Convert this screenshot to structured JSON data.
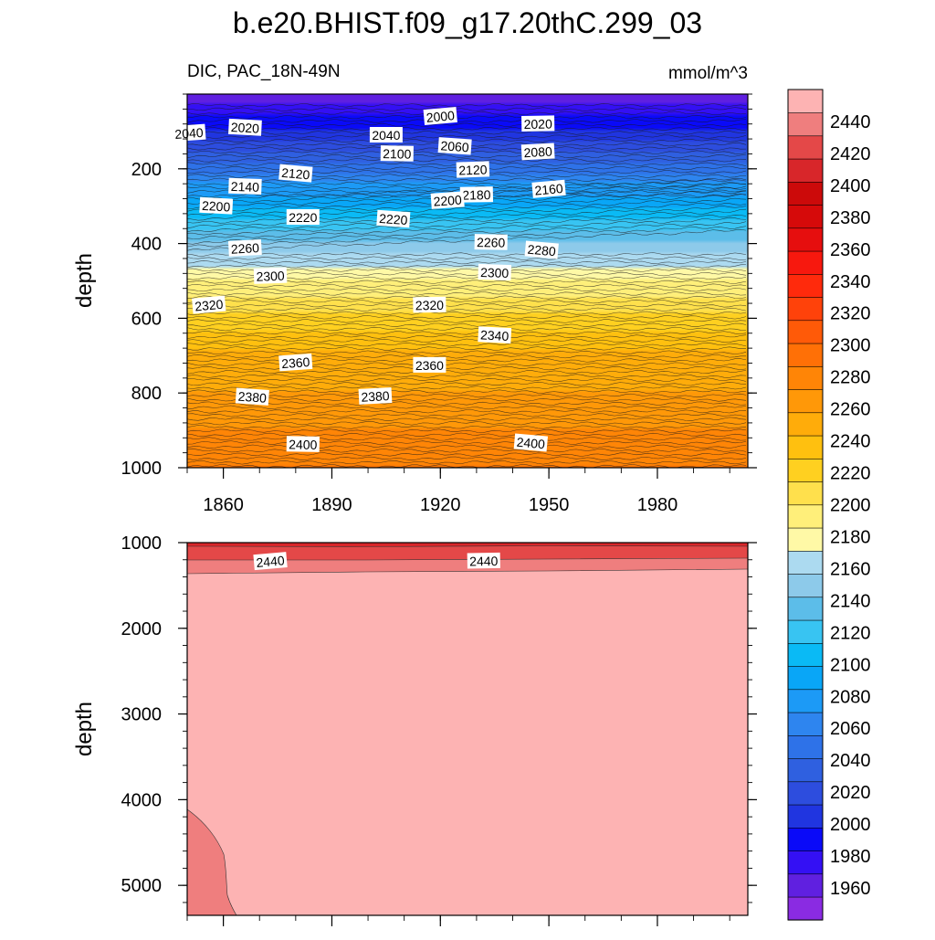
{
  "title": "b.e20.BHIST.f09_g17.20thC.299_03",
  "subtitle_left": "DIC, PAC_18N-49N",
  "subtitle_right": "mmol/m^3",
  "chart_data": [
    {
      "type": "heatmap",
      "panel": "upper",
      "ylabel": "depth",
      "y_reversed": true,
      "xlim": [
        1850,
        2005
      ],
      "ylim": [
        0,
        1000
      ],
      "x_ticks": [
        1860,
        1890,
        1920,
        1950,
        1980
      ],
      "x_tick_labels": [
        "1860",
        "1890",
        "1920",
        "1950",
        "1980"
      ],
      "y_ticks": [
        200,
        400,
        600,
        800,
        1000
      ],
      "y_tick_labels": [
        "200",
        "400",
        "600",
        "800",
        "1000"
      ],
      "contour_levels_depth_profile": [
        {
          "value": 2000,
          "depth": 60
        },
        {
          "value": 2040,
          "depth": 130
        },
        {
          "value": 2080,
          "depth": 185
        },
        {
          "value": 2120,
          "depth": 240
        },
        {
          "value": 2160,
          "depth": 305
        },
        {
          "value": 2200,
          "depth": 365
        },
        {
          "value": 2240,
          "depth": 430
        },
        {
          "value": 2280,
          "depth": 500
        },
        {
          "value": 2320,
          "depth": 585
        },
        {
          "value": 2360,
          "depth": 690
        },
        {
          "value": 2400,
          "depth": 900
        },
        {
          "value": 2420,
          "depth": 1000
        }
      ],
      "contour_labels": [
        {
          "text": "2000",
          "x": 1920,
          "y": 60
        },
        {
          "text": "2020",
          "x": 1947,
          "y": 80
        },
        {
          "text": "2020",
          "x": 1866,
          "y": 90
        },
        {
          "text": "2040",
          "x": 1850.5,
          "y": 105
        },
        {
          "text": "2040",
          "x": 1905,
          "y": 110
        },
        {
          "text": "2060",
          "x": 1924,
          "y": 140
        },
        {
          "text": "2080",
          "x": 1947,
          "y": 155
        },
        {
          "text": "2100",
          "x": 1908,
          "y": 160
        },
        {
          "text": "2120",
          "x": 1880,
          "y": 213
        },
        {
          "text": "2120",
          "x": 1929,
          "y": 203
        },
        {
          "text": "2140",
          "x": 1866,
          "y": 248
        },
        {
          "text": "2160",
          "x": 1950,
          "y": 255
        },
        {
          "text": "2180",
          "x": 1930,
          "y": 270
        },
        {
          "text": "2200",
          "x": 1858,
          "y": 300
        },
        {
          "text": "2200",
          "x": 1922,
          "y": 285
        },
        {
          "text": "2220",
          "x": 1882,
          "y": 330
        },
        {
          "text": "2220",
          "x": 1907,
          "y": 335
        },
        {
          "text": "2260",
          "x": 1866,
          "y": 413
        },
        {
          "text": "2260",
          "x": 1934,
          "y": 397
        },
        {
          "text": "2280",
          "x": 1948,
          "y": 418
        },
        {
          "text": "2300",
          "x": 1873,
          "y": 487
        },
        {
          "text": "2300",
          "x": 1935,
          "y": 478
        },
        {
          "text": "2320",
          "x": 1856,
          "y": 565
        },
        {
          "text": "2320",
          "x": 1917,
          "y": 565
        },
        {
          "text": "2340",
          "x": 1935,
          "y": 646
        },
        {
          "text": "2360",
          "x": 1880,
          "y": 719
        },
        {
          "text": "2360",
          "x": 1917,
          "y": 726
        },
        {
          "text": "2380",
          "x": 1868,
          "y": 811
        },
        {
          "text": "2380",
          "x": 1902,
          "y": 809
        },
        {
          "text": "2400",
          "x": 1882,
          "y": 938
        },
        {
          "text": "2400",
          "x": 1945,
          "y": 934
        }
      ]
    },
    {
      "type": "heatmap",
      "panel": "lower",
      "ylabel": "depth",
      "y_reversed": true,
      "xlim": [
        1850,
        2005
      ],
      "ylim": [
        1000,
        5350
      ],
      "y_ticks": [
        1000,
        2000,
        3000,
        4000,
        5000
      ],
      "y_tick_labels": [
        "1000",
        "2000",
        "3000",
        "4000",
        "5000"
      ],
      "contour_labels": [
        {
          "text": "2440",
          "x": 1873,
          "y": 1220
        },
        {
          "text": "2440",
          "x": 1932,
          "y": 1215
        }
      ]
    }
  ],
  "colorbar": {
    "min": 1940,
    "max": 2460,
    "step": 20,
    "tick_labels": [
      "1960",
      "1980",
      "2000",
      "2020",
      "2040",
      "2060",
      "2080",
      "2100",
      "2120",
      "2140",
      "2160",
      "2180",
      "2200",
      "2220",
      "2240",
      "2260",
      "2280",
      "2300",
      "2320",
      "2340",
      "2360",
      "2380",
      "2400",
      "2420",
      "2440"
    ],
    "colors": [
      "#8a2be2",
      "#6020e0",
      "#3410f4",
      "#0a0af8",
      "#2035e0",
      "#2d4dde",
      "#2f60e0",
      "#2e72e8",
      "#2e85ef",
      "#1c9af6",
      "#09a6f7",
      "#0abaf5",
      "#38c4f2",
      "#5cbde9",
      "#8dcaea",
      "#acdaf0",
      "#fff9a6",
      "#ffef7a",
      "#ffe04c",
      "#ffd020",
      "#ffc00f",
      "#ffac0a",
      "#ff9808",
      "#ff8506",
      "#ff7006",
      "#ff5a08",
      "#ff420a",
      "#ff2a0c",
      "#f7180e",
      "#e60e0e",
      "#d60a0a",
      "#cc0a0a",
      "#d8262a",
      "#e44848",
      "#ef7e7e",
      "#fdb3b3"
    ]
  }
}
